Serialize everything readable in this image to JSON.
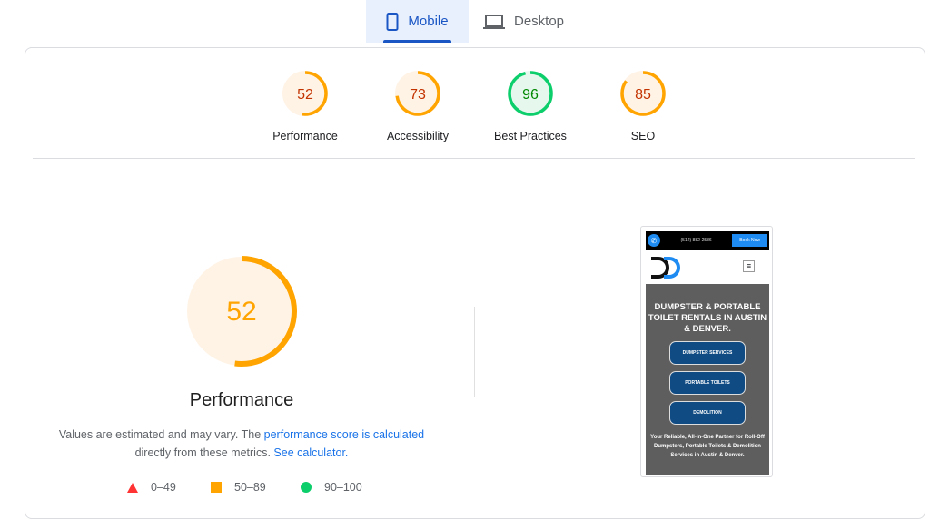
{
  "tabs": [
    {
      "label": "Mobile",
      "icon": "smartphone-icon",
      "active": true
    },
    {
      "label": "Desktop",
      "icon": "laptop-icon",
      "active": false
    }
  ],
  "categories": [
    {
      "label": "Performance",
      "score": 52,
      "color": "#ffa400"
    },
    {
      "label": "Accessibility",
      "score": 73,
      "color": "#ffa400"
    },
    {
      "label": "Best Practices",
      "score": 96,
      "color": "#0cce6b"
    },
    {
      "label": "SEO",
      "score": 85,
      "color": "#ffa400"
    }
  ],
  "main": {
    "score": 52,
    "title": "Performance",
    "desc_text": "Values are estimated and may vary. The ",
    "desc_link": "performance score is calculated",
    "desc_text2": " directly from these metrics. ",
    "desc_link2": "See calculator."
  },
  "legend": [
    {
      "range": "0–49",
      "shape": "triangle",
      "color": "#ff3333"
    },
    {
      "range": "50–89",
      "shape": "square",
      "color": "#ffa400"
    },
    {
      "range": "90–100",
      "shape": "circle",
      "color": "#0cce6b"
    }
  ],
  "screenshot": {
    "phone": "(512) 882-2586",
    "book": "Book Now",
    "headline": "DUMPSTER & PORTABLE TOILET RENTALS IN AUSTIN & DENVER.",
    "buttons": [
      "DUMPSTER SERVICES",
      "PORTABLE TOILETS",
      "DEMOLITION"
    ],
    "tagline": "Your Reliable, All-in-One Partner for Roll-Off Dumpsters, Portable Toilets & Demolition Services in Austin & Denver."
  }
}
